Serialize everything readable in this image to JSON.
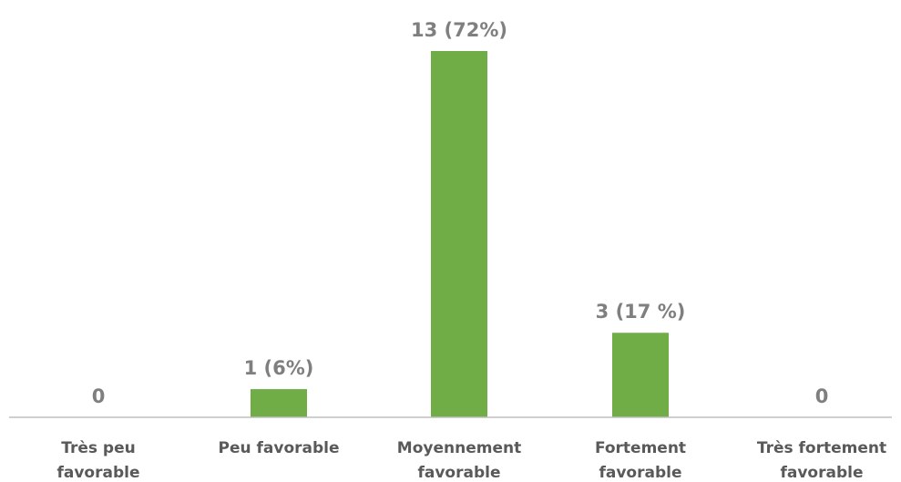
{
  "chart_data": {
    "type": "bar",
    "categories": [
      [
        "Très peu",
        "favorable"
      ],
      [
        "Peu favorable"
      ],
      [
        "Moyennement",
        "favorable"
      ],
      [
        "Fortement",
        "favorable"
      ],
      [
        "Très fortement",
        "favorable"
      ]
    ],
    "values": [
      0,
      1,
      13,
      3,
      0
    ],
    "data_labels": [
      "0",
      "1 (6%)",
      "13 (72%)",
      "3 (17 %)",
      "0"
    ],
    "ylim": [
      0,
      13
    ],
    "grid": false,
    "legend": "none",
    "colors": {
      "bar": "#70ad47",
      "axis": "#bfbfbf",
      "data_label": "#7f7f7f",
      "category_label": "#595959"
    }
  }
}
